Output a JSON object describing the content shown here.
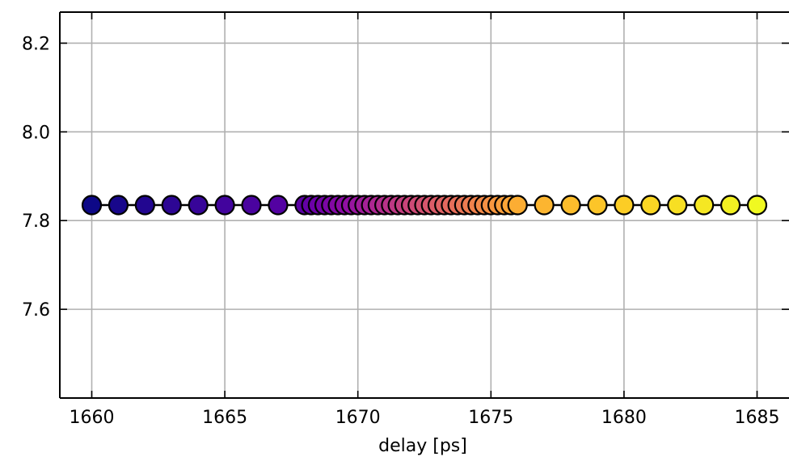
{
  "chart_data": {
    "type": "scatter",
    "title": "",
    "xlabel": "delay [ps]",
    "ylabel": "",
    "xlim": [
      1658.8,
      1686.2
    ],
    "ylim": [
      7.4,
      8.27
    ],
    "x_ticks": [
      1660,
      1665,
      1670,
      1675,
      1680,
      1685
    ],
    "x_tick_labels": [
      "1660",
      "1665",
      "1670",
      "1675",
      "1680",
      "1685"
    ],
    "y_ticks": [
      7.6,
      7.8,
      8.0,
      8.2
    ],
    "y_tick_labels": [
      "7.6",
      "7.8",
      "8.0",
      "8.2"
    ],
    "grid": true,
    "colormap": "plasma",
    "line_color": "#000000",
    "marker_edge_color": "#000000",
    "series": [
      {
        "x": [
          1660,
          1661,
          1662,
          1663,
          1664,
          1665,
          1666,
          1667,
          1668,
          1668.25,
          1668.5,
          1668.75,
          1669,
          1669.25,
          1669.5,
          1669.75,
          1670,
          1670.25,
          1670.5,
          1670.75,
          1671,
          1671.25,
          1671.5,
          1671.75,
          1672,
          1672.25,
          1672.5,
          1672.75,
          1673,
          1673.25,
          1673.5,
          1673.75,
          1674,
          1674.25,
          1674.5,
          1674.75,
          1675,
          1675.25,
          1675.5,
          1675.75,
          1676,
          1677,
          1678,
          1679,
          1680,
          1681,
          1682,
          1683,
          1684,
          1685
        ],
        "y": [
          7.835,
          7.835,
          7.835,
          7.835,
          7.835,
          7.835,
          7.835,
          7.835,
          7.835,
          7.835,
          7.835,
          7.835,
          7.835,
          7.835,
          7.835,
          7.835,
          7.835,
          7.835,
          7.835,
          7.835,
          7.835,
          7.835,
          7.835,
          7.835,
          7.835,
          7.835,
          7.835,
          7.835,
          7.835,
          7.835,
          7.835,
          7.835,
          7.835,
          7.835,
          7.835,
          7.835,
          7.835,
          7.835,
          7.835,
          7.835,
          7.835,
          7.835,
          7.835,
          7.835,
          7.835,
          7.835,
          7.835,
          7.835,
          7.835,
          7.835
        ]
      }
    ]
  }
}
